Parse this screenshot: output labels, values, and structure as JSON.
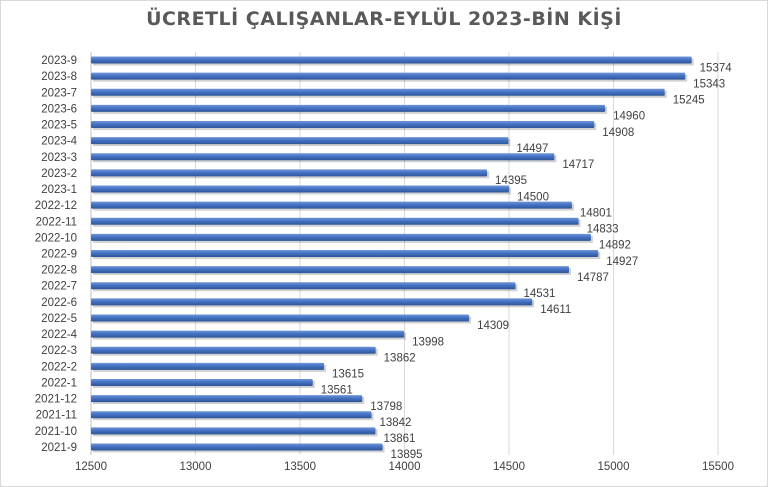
{
  "chart_data": {
    "type": "bar",
    "orientation": "horizontal",
    "title": "ÜCRETLİ ÇALIŞANLAR-EYLÜL 2023-BİN KİŞİ",
    "xlabel": "",
    "ylabel": "",
    "xlim": [
      12500,
      15500
    ],
    "xticks": [
      12500,
      13000,
      13500,
      14000,
      14500,
      15000,
      15500
    ],
    "grid": true,
    "legend": "none",
    "bar_color": "#4472c4",
    "categories": [
      "2023-9",
      "2023-8",
      "2023-7",
      "2023-6",
      "2023-5",
      "2023-4",
      "2023-3",
      "2023-2",
      "2023-1",
      "2022-12",
      "2022-11",
      "2022-10",
      "2022-9",
      "2022-8",
      "2022-7",
      "2022-6",
      "2022-5",
      "2022-4",
      "2022-3",
      "2022-2",
      "2022-1",
      "2021-12",
      "2021-11",
      "2021-10",
      "2021-9"
    ],
    "values": [
      15374,
      15343,
      15245,
      14960,
      14908,
      14497,
      14717,
      14395,
      14500,
      14801,
      14833,
      14892,
      14927,
      14787,
      14531,
      14611,
      14309,
      13998,
      13862,
      13615,
      13561,
      13798,
      13842,
      13861,
      13895
    ]
  }
}
